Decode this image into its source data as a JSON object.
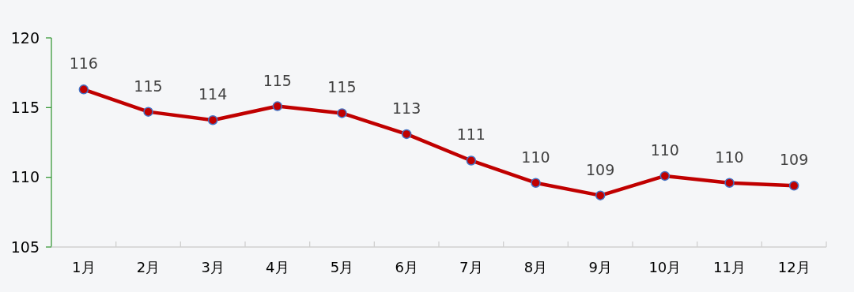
{
  "chart_data": {
    "type": "line",
    "categories": [
      "1月",
      "2月",
      "3月",
      "4月",
      "5月",
      "6月",
      "7月",
      "8月",
      "9月",
      "10月",
      "11月",
      "12月"
    ],
    "series": [
      {
        "color": "#c00000",
        "values": [
          116.3,
          114.7,
          114.1,
          115.1,
          114.6,
          113.1,
          111.2,
          109.6,
          108.7,
          110.1,
          109.6,
          109.4
        ],
        "value_labels": [
          "116",
          "115",
          "114",
          "115",
          "115",
          "113",
          "111",
          "110",
          "109",
          "110",
          "110",
          "109"
        ]
      }
    ],
    "ylim": [
      105,
      120
    ],
    "yticks": [
      105,
      110,
      115,
      120
    ],
    "marker": "circle",
    "line_style": "solid",
    "grid": false
  }
}
